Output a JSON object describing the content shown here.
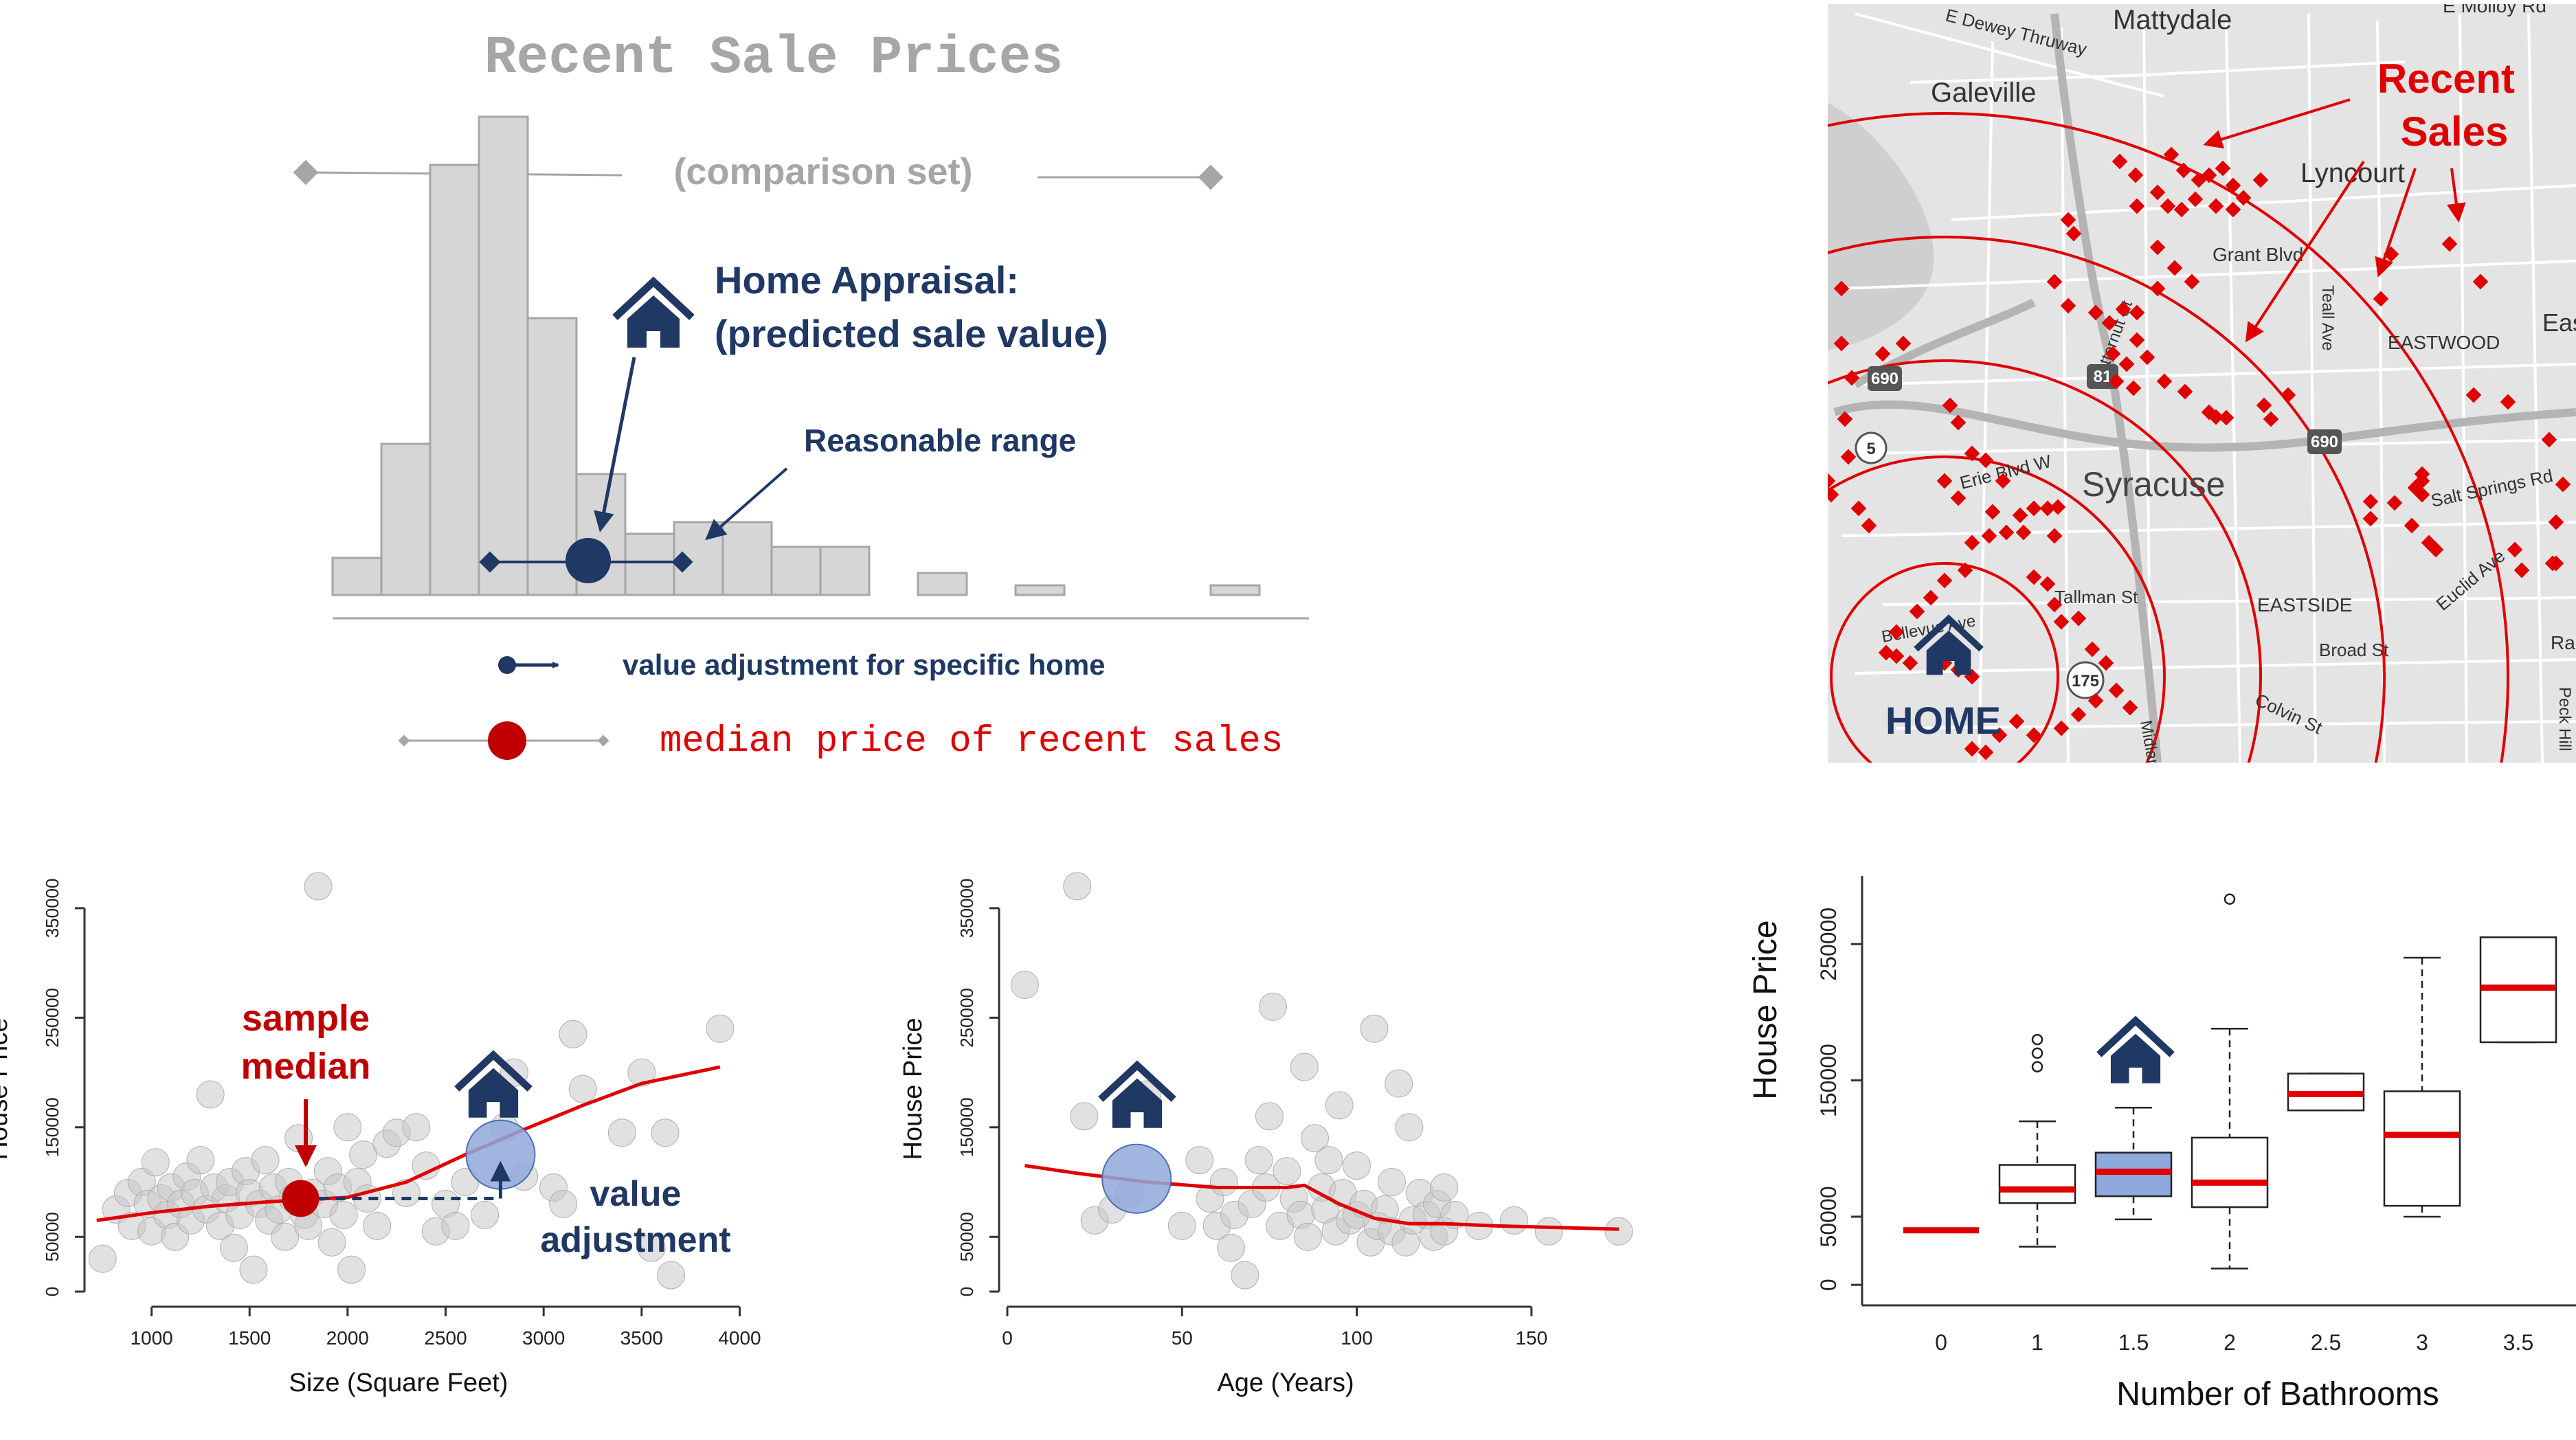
{
  "colors": {
    "navy": "#1f3864",
    "red": "#e00000",
    "darkred": "#c00000",
    "bar_fill": "#d6d6d6",
    "bar_stroke": "#a6a6a6",
    "gray_text": "#a6a6a6",
    "map_bg": "#e4e4e4",
    "point_fill": "#c8c8c8",
    "highlight_fill": "#8fa9dc"
  },
  "hist_panel": {
    "title": "Recent Sale Prices",
    "comparison_label": "(comparison set)",
    "appraisal_label_1": "Home Appraisal:",
    "appraisal_label_2": "(predicted sale value)",
    "range_label": "Reasonable range",
    "legend_adjust": "value adjustment for specific home",
    "legend_median": "median price of recent sales",
    "home_icon": "house-icon"
  },
  "map_panel": {
    "recent_sales_1": "Recent",
    "recent_sales_2": "Sales",
    "home_label": "HOME",
    "city": "Syracuse",
    "places": [
      "Mattydale",
      "Galeville",
      "E Molloy Rd",
      "Lyncourt",
      "Grant Blvd",
      "EASTWOOD",
      "Eas",
      "Erie Blvd W",
      "Tallman St",
      "EASTSIDE",
      "Broad St",
      "Colvin St",
      "Salt Springs Rd",
      "Euclid Ave",
      "Teall Ave",
      "Butternut St",
      "Bellevue Ave",
      "Ran",
      "Peck Hill",
      "Midland",
      "E Dewey Thruway"
    ],
    "highways": [
      "690",
      "81",
      "690",
      "5",
      "175"
    ]
  },
  "chart_data": [
    {
      "type": "scatter",
      "title": "",
      "xlabel": "Size (Square Feet)",
      "ylabel": "House Price",
      "xlim": [
        700,
        4100
      ],
      "ylim": [
        0,
        370000
      ],
      "x_ticks": [
        "1000",
        "1500",
        "2000",
        "2500",
        "3000",
        "3500",
        "4000"
      ],
      "y_ticks": [
        "0",
        "50000",
        "150000",
        "250000",
        "350000"
      ],
      "annotations": [
        "sample median",
        "value adjustment"
      ],
      "points": [
        [
          750,
          30000
        ],
        [
          820,
          75000
        ],
        [
          880,
          90000
        ],
        [
          900,
          60000
        ],
        [
          950,
          100000
        ],
        [
          980,
          80000
        ],
        [
          1000,
          55000
        ],
        [
          1020,
          118000
        ],
        [
          1050,
          85000
        ],
        [
          1080,
          70000
        ],
        [
          1100,
          95000
        ],
        [
          1120,
          50000
        ],
        [
          1150,
          80000
        ],
        [
          1180,
          105000
        ],
        [
          1200,
          65000
        ],
        [
          1220,
          90000
        ],
        [
          1250,
          120000
        ],
        [
          1280,
          75000
        ],
        [
          1300,
          180000
        ],
        [
          1320,
          95000
        ],
        [
          1350,
          60000
        ],
        [
          1380,
          85000
        ],
        [
          1400,
          100000
        ],
        [
          1420,
          40000
        ],
        [
          1450,
          70000
        ],
        [
          1480,
          110000
        ],
        [
          1500,
          90000
        ],
        [
          1520,
          20000
        ],
        [
          1550,
          80000
        ],
        [
          1580,
          120000
        ],
        [
          1600,
          65000
        ],
        [
          1620,
          95000
        ],
        [
          1650,
          75000
        ],
        [
          1680,
          50000
        ],
        [
          1700,
          100000
        ],
        [
          1720,
          85000
        ],
        [
          1750,
          140000
        ],
        [
          1780,
          70000
        ],
        [
          1800,
          60000
        ],
        [
          1820,
          90000
        ],
        [
          1850,
          370000
        ],
        [
          1880,
          80000
        ],
        [
          1900,
          110000
        ],
        [
          1920,
          45000
        ],
        [
          1950,
          95000
        ],
        [
          1980,
          70000
        ],
        [
          2000,
          150000
        ],
        [
          2020,
          20000
        ],
        [
          2050,
          100000
        ],
        [
          2080,
          125000
        ],
        [
          2100,
          85000
        ],
        [
          2150,
          60000
        ],
        [
          2200,
          135000
        ],
        [
          2250,
          145000
        ],
        [
          2300,
          90000
        ],
        [
          2350,
          150000
        ],
        [
          2400,
          115000
        ],
        [
          2450,
          55000
        ],
        [
          2500,
          80000
        ],
        [
          2550,
          60000
        ],
        [
          2600,
          100000
        ],
        [
          2700,
          70000
        ],
        [
          2800,
          150000
        ],
        [
          2850,
          200000
        ],
        [
          2900,
          105000
        ],
        [
          3050,
          95000
        ],
        [
          3100,
          80000
        ],
        [
          3150,
          235000
        ],
        [
          3200,
          185000
        ],
        [
          3400,
          145000
        ],
        [
          3500,
          200000
        ],
        [
          3550,
          40000
        ],
        [
          3620,
          145000
        ],
        [
          3650,
          15000
        ],
        [
          3900,
          240000
        ]
      ],
      "trend": {
        "x": [
          720,
          1000,
          1300,
          1600,
          1800,
          2000,
          2300,
          2600,
          2900,
          3200,
          3500,
          3900
        ],
        "y": [
          65000,
          72000,
          78000,
          82000,
          84000,
          86000,
          100000,
          125000,
          148000,
          170000,
          190000,
          205000
        ]
      },
      "median_point": {
        "x": 1760,
        "y": 85000
      },
      "home_point": {
        "x": 2780,
        "y": 125000
      }
    },
    {
      "type": "scatter",
      "title": "",
      "xlabel": "Age (Years)",
      "ylabel": "House Price",
      "xlim": [
        0,
        175
      ],
      "ylim": [
        0,
        370000
      ],
      "x_ticks": [
        "0",
        "50",
        "100",
        "150"
      ],
      "y_ticks": [
        "0",
        "50000",
        "150000",
        "250000",
        "350000"
      ],
      "points": [
        [
          5,
          280000
        ],
        [
          20,
          370000
        ],
        [
          22,
          160000
        ],
        [
          25,
          65000
        ],
        [
          30,
          75000
        ],
        [
          35,
          90000
        ],
        [
          40,
          180000
        ],
        [
          50,
          60000
        ],
        [
          55,
          120000
        ],
        [
          58,
          85000
        ],
        [
          60,
          60000
        ],
        [
          62,
          100000
        ],
        [
          64,
          40000
        ],
        [
          65,
          70000
        ],
        [
          68,
          15000
        ],
        [
          70,
          80000
        ],
        [
          72,
          120000
        ],
        [
          74,
          95000
        ],
        [
          75,
          160000
        ],
        [
          76,
          260000
        ],
        [
          78,
          60000
        ],
        [
          80,
          110000
        ],
        [
          82,
          85000
        ],
        [
          84,
          70000
        ],
        [
          85,
          205000
        ],
        [
          86,
          50000
        ],
        [
          88,
          140000
        ],
        [
          90,
          95000
        ],
        [
          91,
          75000
        ],
        [
          92,
          120000
        ],
        [
          94,
          55000
        ],
        [
          95,
          170000
        ],
        [
          96,
          90000
        ],
        [
          98,
          65000
        ],
        [
          100,
          115000
        ],
        [
          100,
          70000
        ],
        [
          102,
          80000
        ],
        [
          104,
          45000
        ],
        [
          105,
          240000
        ],
        [
          106,
          60000
        ],
        [
          108,
          75000
        ],
        [
          110,
          100000
        ],
        [
          110,
          55000
        ],
        [
          112,
          190000
        ],
        [
          114,
          45000
        ],
        [
          115,
          150000
        ],
        [
          116,
          65000
        ],
        [
          118,
          90000
        ],
        [
          120,
          70000
        ],
        [
          122,
          50000
        ],
        [
          123,
          80000
        ],
        [
          125,
          95000
        ],
        [
          125,
          55000
        ],
        [
          128,
          70000
        ],
        [
          135,
          60000
        ],
        [
          145,
          65000
        ],
        [
          155,
          55000
        ],
        [
          175,
          55000
        ]
      ],
      "trend": {
        "x": [
          5,
          20,
          40,
          60,
          70,
          80,
          85,
          95,
          105,
          115,
          125,
          140,
          175
        ],
        "y": [
          115000,
          108000,
          100000,
          95000,
          95000,
          95000,
          97000,
          80000,
          67000,
          62000,
          62000,
          60000,
          57000
        ]
      },
      "home_point": {
        "x": 37,
        "y": 103000
      }
    },
    {
      "type": "box",
      "title": "",
      "xlabel": "Number of Bathrooms",
      "ylabel": "House Price",
      "categories": [
        "0",
        "1",
        "1.5",
        "2",
        "2.5",
        "3",
        "3.5"
      ],
      "y_ticks": [
        "0",
        "50000",
        "150000",
        "250000"
      ],
      "ylim": [
        -10000,
        300000
      ],
      "boxes": [
        {
          "category": "0",
          "whisker_low": 40000,
          "q1": 40000,
          "median": 40000,
          "q3": 40000,
          "whisker_high": 40000,
          "outliers": []
        },
        {
          "category": "1",
          "whisker_low": 28000,
          "q1": 60000,
          "median": 70000,
          "q3": 88000,
          "whisker_high": 120000,
          "outliers": [
            160000,
            170000,
            180000
          ]
        },
        {
          "category": "1.5",
          "whisker_low": 48000,
          "q1": 65000,
          "median": 83000,
          "q3": 97000,
          "whisker_high": 130000,
          "outliers": [
            165000
          ]
        },
        {
          "category": "2",
          "whisker_low": 12000,
          "q1": 57000,
          "median": 75000,
          "q3": 108000,
          "whisker_high": 188000,
          "outliers": [
            283000
          ]
        },
        {
          "category": "2.5",
          "whisker_low": 128000,
          "q1": 128000,
          "median": 140000,
          "q3": 155000,
          "whisker_high": 155000,
          "outliers": []
        },
        {
          "category": "3",
          "whisker_low": 50000,
          "q1": 58000,
          "median": 110000,
          "q3": 142000,
          "whisker_high": 240000,
          "outliers": []
        },
        {
          "category": "3.5",
          "whisker_low": 178000,
          "q1": 178000,
          "median": 218000,
          "q3": 255000,
          "whisker_high": 255000,
          "outliers": []
        }
      ],
      "highlight_category": "1.5"
    }
  ]
}
